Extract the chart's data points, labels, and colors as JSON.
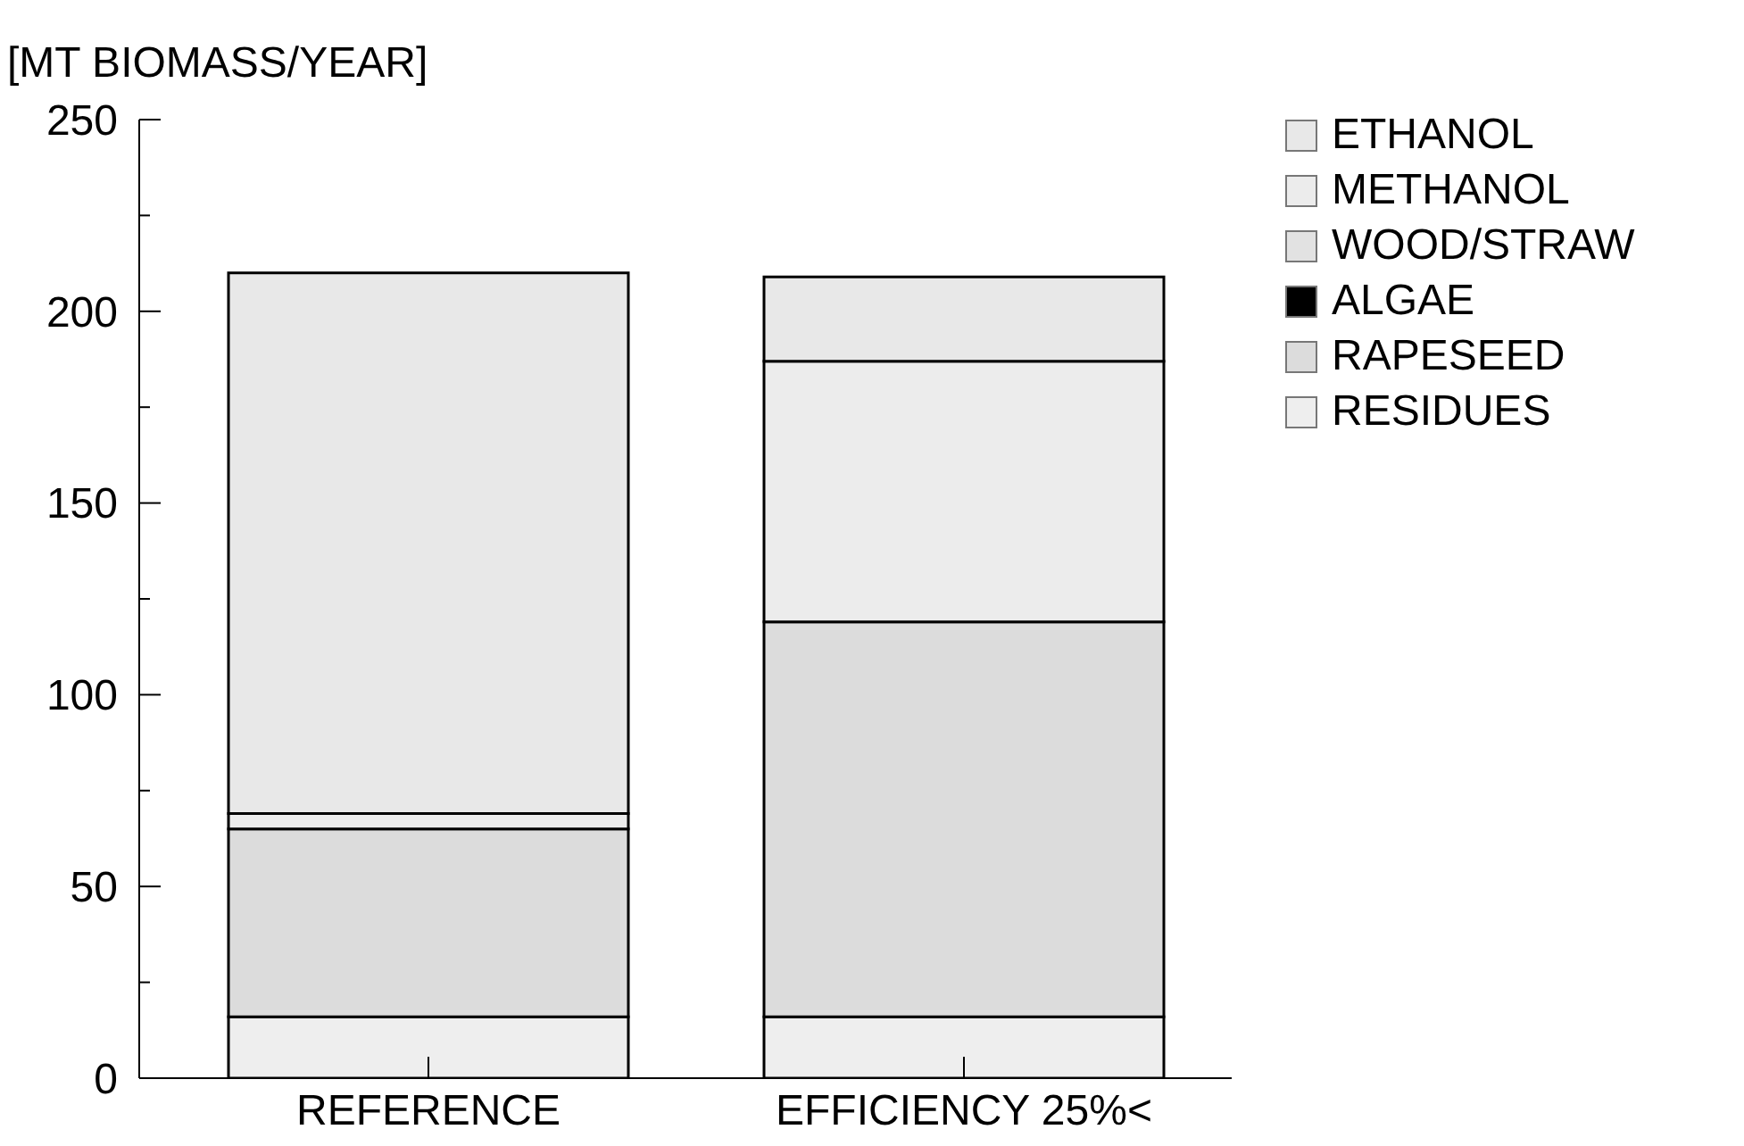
{
  "chart_data": {
    "type": "bar",
    "stacked": true,
    "ylabel": "[MT BIOMASS/YEAR]",
    "categories": [
      "REFERENCE",
      "EFFICIENCY 25%<"
    ],
    "series": [
      {
        "name": "RESIDUES",
        "color": "#eeeeee",
        "values": [
          16,
          16
        ]
      },
      {
        "name": "RAPESEED",
        "color": "#dcdcdc",
        "values": [
          49,
          103
        ]
      },
      {
        "name": "ALGAE",
        "color": "#000000",
        "values": [
          0,
          0
        ]
      },
      {
        "name": "WOOD/STRAW",
        "color": "#e2e2e2",
        "values": [
          0,
          0
        ]
      },
      {
        "name": "METHANOL",
        "color": "#ececec",
        "values": [
          4,
          68
        ]
      },
      {
        "name": "ETHANOL",
        "color": "#e8e8e8",
        "values": [
          141,
          22
        ]
      }
    ],
    "ylim": [
      0,
      250
    ],
    "yticks": [
      0,
      {
        "value": 25,
        "label": null
      },
      50,
      {
        "value": 75,
        "label": null
      },
      100,
      {
        "value": 125,
        "label": null
      },
      150,
      {
        "value": 175,
        "label": null
      },
      200,
      {
        "value": 225,
        "label": null
      },
      250
    ],
    "legend": "right"
  }
}
